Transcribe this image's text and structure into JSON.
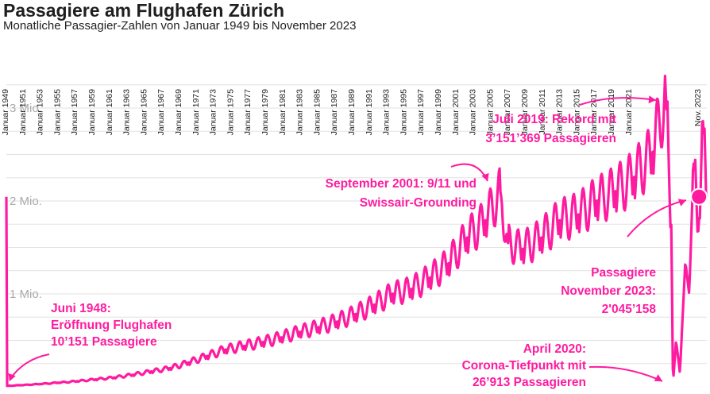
{
  "chart_data": {
    "type": "line",
    "title": "Passagiere am Flughafen Zürich",
    "subtitle": "Monatliche Passagier-Zahlen von Januar 1949 bis November 2023",
    "x_tick_labels": [
      "Januar 1949",
      "Januar 1951",
      "Januar 1953",
      "Januar 1955",
      "Januar 1957",
      "Januar 1959",
      "Januar 1961",
      "Januar 1963",
      "Januar 1965",
      "Januar 1967",
      "Januar 1969",
      "Januar 1971",
      "Januar 1973",
      "Januar 1975",
      "Januar 1977",
      "Januar 1979",
      "Januar 1981",
      "Januar 1983",
      "Januar 1985",
      "Januar 1987",
      "Januar 1989",
      "Januar 1991",
      "Januar 1993",
      "Januar 1995",
      "Januar 1997",
      "Januar 1999",
      "Januar 2001",
      "Januar 2003",
      "Januar 2005",
      "Januar 2007",
      "Januar 2009",
      "Januar 2011",
      "Januar 2013",
      "Januar 2015",
      "Januar 2017",
      "Januar 2019",
      "Januar 2021",
      "Nov. 2023"
    ],
    "y_ticks": [
      {
        "value": 1000000,
        "label": "1 Mio."
      },
      {
        "value": 2000000,
        "label": "2 Mio."
      },
      {
        "value": 3000000,
        "label": "3 Mio."
      }
    ],
    "ylim": [
      0,
      3250000
    ],
    "grid": true,
    "line_color": "#ff1ba0",
    "series": [
      {
        "points": [
          [
            "1948-06",
            10151
          ],
          [
            "1950-01",
            18000
          ],
          [
            "1952-01",
            30000
          ],
          [
            "1954-01",
            45000
          ],
          [
            "1956-01",
            60000
          ],
          [
            "1958-01",
            80000
          ],
          [
            "1960-01",
            100000
          ],
          [
            "1962-01",
            130000
          ],
          [
            "1964-01",
            165000
          ],
          [
            "1966-01",
            200000
          ],
          [
            "1968-01",
            260000
          ],
          [
            "1970-01",
            330000
          ],
          [
            "1972-01",
            400000
          ],
          [
            "1974-01",
            440000
          ],
          [
            "1976-01",
            480000
          ],
          [
            "1978-01",
            530000
          ],
          [
            "1980-01",
            590000
          ],
          [
            "1982-01",
            640000
          ],
          [
            "1984-01",
            700000
          ],
          [
            "1986-01",
            780000
          ],
          [
            "1988-01",
            880000
          ],
          [
            "1990-01",
            1000000
          ],
          [
            "1992-01",
            1050000
          ],
          [
            "1994-01",
            1170000
          ],
          [
            "1996-01",
            1320000
          ],
          [
            "1998-01",
            1600000
          ],
          [
            "2000-01",
            1780000
          ],
          [
            "2001-09",
            2100000
          ],
          [
            "2002-06",
            1550000
          ],
          [
            "2004-01",
            1480000
          ],
          [
            "2006-01",
            1600000
          ],
          [
            "2008-01",
            1790000
          ],
          [
            "2010-01",
            1850000
          ],
          [
            "2012-01",
            2000000
          ],
          [
            "2014-01",
            2100000
          ],
          [
            "2016-01",
            2250000
          ],
          [
            "2018-01",
            2500000
          ],
          [
            "2019-07",
            3151369
          ],
          [
            "2020-02",
            1700000
          ],
          [
            "2020-04",
            26913
          ],
          [
            "2020-08",
            500000
          ],
          [
            "2021-01",
            150000
          ],
          [
            "2021-08",
            1350000
          ],
          [
            "2022-01",
            1000000
          ],
          [
            "2022-07",
            2450000
          ],
          [
            "2023-01",
            1650000
          ],
          [
            "2023-07",
            2900000
          ],
          [
            "2023-11",
            2045158
          ]
        ]
      }
    ],
    "annotations": [
      {
        "lines": [
          "Juni 1948:",
          "Eröffnung Flughafen",
          "10’151 Passagiere"
        ]
      },
      {
        "lines": [
          "September 2001: 9/11 und",
          "Swissair-Grounding"
        ]
      },
      {
        "lines": [
          "Juli 2019: Rekord mit",
          "3’151’369 Passagieren"
        ]
      },
      {
        "lines": [
          "Passagiere",
          "November 2023:",
          "2'045’158"
        ]
      },
      {
        "lines": [
          "April 2020:",
          "Corona-Tiefpunkt mit",
          "26’913 Passagieren"
        ]
      }
    ]
  }
}
